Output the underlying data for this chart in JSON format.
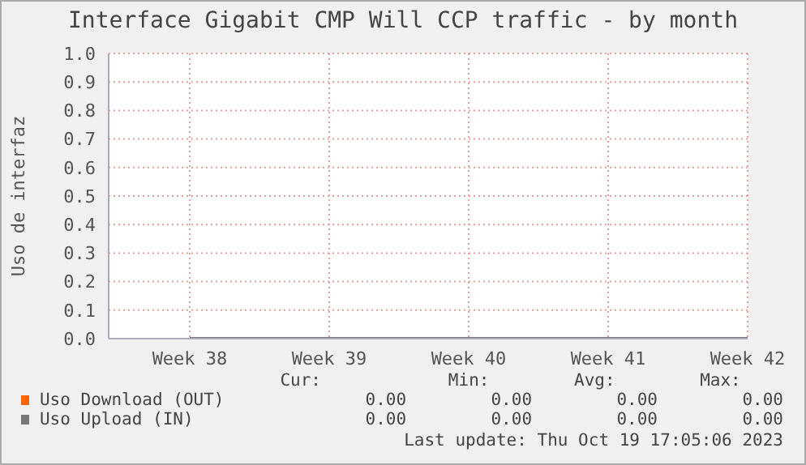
{
  "chart_data": {
    "type": "line",
    "title": "Interface Gigabit CMP Will CCP traffic - by month",
    "ylabel": "Uso de interfaz",
    "categories": [
      "Week 38",
      "Week 39",
      "Week 40",
      "Week 41",
      "Week 42"
    ],
    "series": [
      {
        "name": "Uso Download (OUT)",
        "color": "#ff6600",
        "values": [
          null,
          null,
          null,
          null,
          null
        ]
      },
      {
        "name": "Uso Upload (IN)",
        "color": "#777777",
        "values": [
          0,
          0,
          0,
          0,
          0
        ]
      }
    ],
    "ylim": [
      0,
      1
    ],
    "yticks": [
      {
        "value": 0,
        "label": "0.0"
      },
      {
        "value": 0.1,
        "label": "0.1"
      },
      {
        "value": 0.2,
        "label": "0.2"
      },
      {
        "value": 0.3,
        "label": "0.3"
      },
      {
        "value": 0.4,
        "label": "0.4"
      },
      {
        "value": 0.5,
        "label": "0.5"
      },
      {
        "value": 0.6,
        "label": "0.6"
      },
      {
        "value": 0.7,
        "label": "0.7"
      },
      {
        "value": 0.8,
        "label": "0.8"
      },
      {
        "value": 0.9,
        "label": "0.9"
      },
      {
        "value": 1,
        "label": "1.0"
      }
    ],
    "grid": true,
    "legend": "bottom",
    "marker": "none",
    "line_style": "solid",
    "annotations": [
      "Cur:",
      "Min:",
      "Avg:",
      "Max:",
      "0.00",
      "0.00",
      "0.00",
      "0.00",
      "0.00",
      "0.00",
      "0.00",
      "0.00",
      "Last update: Thu Oct 19 17:05:06 2023"
    ]
  }
}
